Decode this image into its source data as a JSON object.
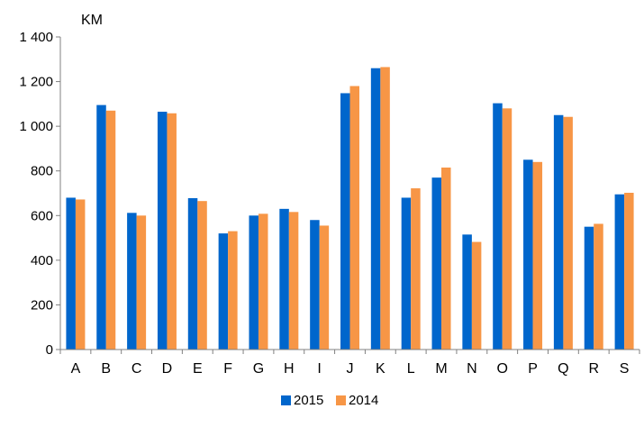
{
  "chart_data": {
    "type": "bar",
    "ylabel": "KM",
    "ylim": [
      0,
      1400
    ],
    "yticks": [
      0,
      200,
      400,
      600,
      800,
      1000,
      1200,
      1400
    ],
    "ytick_labels": [
      "0",
      "200",
      "400",
      "600",
      "800",
      "1 000",
      "1 200",
      "1 400"
    ],
    "grid": false,
    "legend_position": "bottom-center",
    "categories": [
      "A",
      "B",
      "C",
      "D",
      "E",
      "F",
      "G",
      "H",
      "I",
      "J",
      "K",
      "L",
      "M",
      "N",
      "O",
      "P",
      "Q",
      "R",
      "S"
    ],
    "series": [
      {
        "name": "2015",
        "color": "#0066CC",
        "values": [
          680,
          1095,
          612,
          1065,
          678,
          520,
          600,
          630,
          580,
          1148,
          1260,
          680,
          770,
          515,
          1103,
          850,
          1050,
          550,
          695
        ]
      },
      {
        "name": "2014",
        "color": "#F79646",
        "values": [
          672,
          1070,
          600,
          1058,
          665,
          530,
          608,
          616,
          555,
          1180,
          1265,
          722,
          815,
          482,
          1080,
          840,
          1042,
          563,
          702
        ]
      }
    ]
  }
}
